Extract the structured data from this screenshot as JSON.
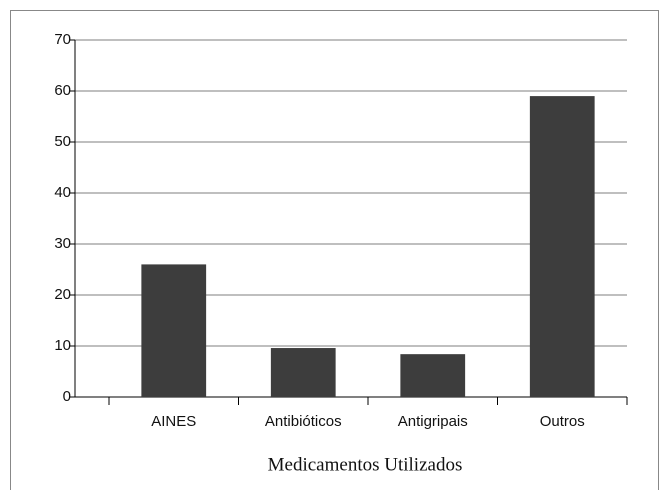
{
  "chart_data": {
    "type": "bar",
    "categories": [
      "AINES",
      "Antibióticos",
      "Antigripais",
      "Outros"
    ],
    "values": [
      26,
      9.6,
      8.4,
      59
    ],
    "color": "#3d3d3d",
    "ylim": [
      0,
      70
    ],
    "yticks": [
      0,
      10,
      20,
      30,
      40,
      50,
      60,
      70
    ],
    "xlabel": "Medicamentos Utilizados",
    "grid": true
  }
}
